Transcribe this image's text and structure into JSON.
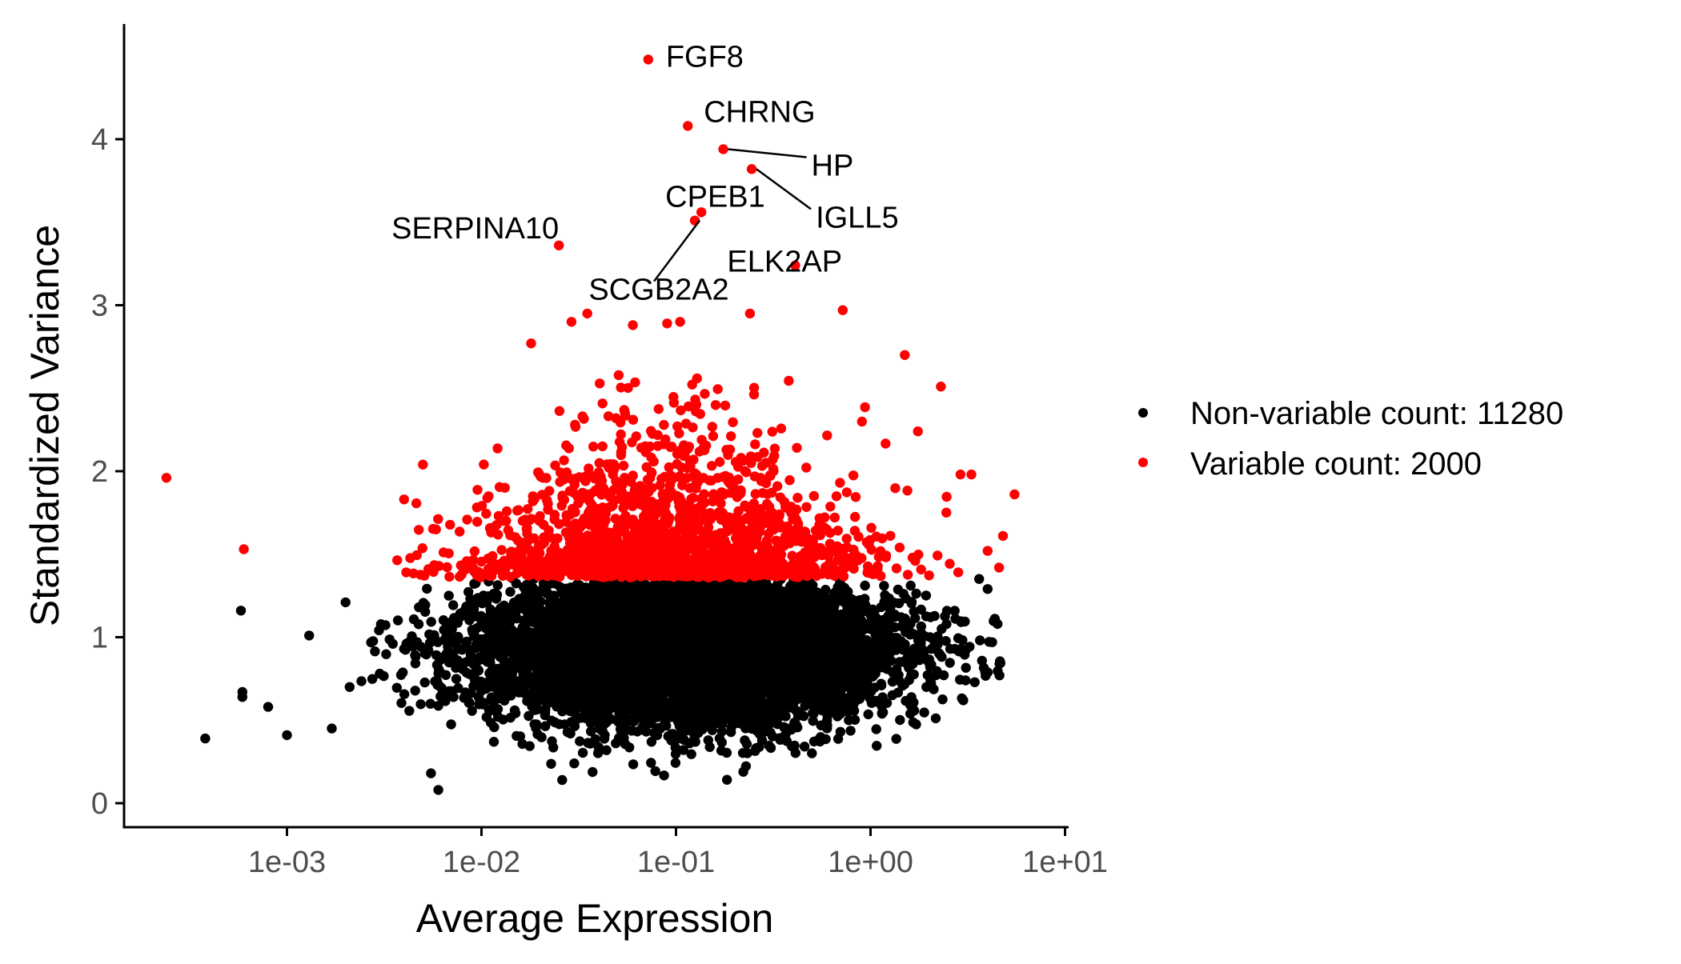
{
  "chart_data": {
    "type": "scatter",
    "title": "",
    "xlabel": "Average Expression",
    "ylabel": "Standardized Variance",
    "x_scale": "log10",
    "xlim": [
      0.0002,
      10
    ],
    "ylim": [
      0,
      4.6
    ],
    "x_ticks": [
      0.001,
      0.01,
      0.1,
      1,
      10
    ],
    "x_tick_labels": [
      "1e-03",
      "1e-02",
      "1e-01",
      "1e+00",
      "1e+01"
    ],
    "y_ticks": [
      0,
      1,
      2,
      3,
      4
    ],
    "y_tick_labels": [
      "0",
      "1",
      "2",
      "3",
      "4"
    ],
    "grid": false,
    "legend_position": "right",
    "series": [
      {
        "name": "Non-variable count: 11280",
        "color": "#000000",
        "count": 11280,
        "y_range": [
          0.08,
          1.36
        ],
        "sample_points": [
          [
            0.00038,
            0.39
          ],
          [
            0.00058,
            1.16
          ],
          [
            0.00059,
            0.67
          ],
          [
            0.00059,
            0.64
          ],
          [
            0.0008,
            0.58
          ],
          [
            0.0013,
            1.01
          ],
          [
            0.001,
            0.41
          ],
          [
            0.0017,
            0.45
          ],
          [
            0.002,
            1.21
          ],
          [
            0.0021,
            0.7
          ],
          [
            0.003,
            0.78
          ],
          [
            0.0035,
            0.96
          ],
          [
            0.0055,
            0.18
          ],
          [
            0.006,
            0.08
          ],
          [
            0.026,
            0.14
          ],
          [
            0.03,
            0.24
          ],
          [
            0.7,
            0.43
          ],
          [
            4.0,
            1.29
          ],
          [
            4.5,
            1.08
          ],
          [
            4.6,
            0.84
          ],
          [
            4.6,
            0.77
          ],
          [
            3.0,
            0.62
          ]
        ]
      },
      {
        "name": "Variable count: 2000",
        "color": "#ff0000",
        "count": 2000,
        "y_range": [
          1.36,
          4.5
        ],
        "sample_points": [
          [
            0.00024,
            1.96
          ],
          [
            0.0006,
            1.53
          ],
          [
            0.004,
            1.83
          ],
          [
            0.005,
            2.04
          ],
          [
            0.018,
            2.77
          ],
          [
            0.029,
            2.9
          ],
          [
            0.035,
            2.95
          ],
          [
            0.06,
            2.88
          ],
          [
            0.09,
            2.89
          ],
          [
            0.105,
            2.9
          ],
          [
            0.24,
            2.95
          ],
          [
            0.72,
            2.97
          ],
          [
            1.5,
            2.7
          ],
          [
            2.3,
            2.51
          ],
          [
            2.9,
            1.98
          ],
          [
            3.3,
            1.98
          ],
          [
            5.5,
            1.86
          ],
          [
            4.8,
            1.61
          ],
          [
            4.0,
            1.52
          ]
        ]
      }
    ],
    "labeled_points": [
      {
        "label": "FGF8",
        "x": 0.072,
        "y": 4.48
      },
      {
        "label": "CHRNG",
        "x": 0.115,
        "y": 4.08
      },
      {
        "label": "HP",
        "x": 0.175,
        "y": 3.94
      },
      {
        "label": "IGLL5",
        "x": 0.245,
        "y": 3.82
      },
      {
        "label": "CPEB1",
        "x": 0.135,
        "y": 3.56
      },
      {
        "label": "SCGB2A2",
        "x": 0.125,
        "y": 3.51
      },
      {
        "label": "SERPINA10",
        "x": 0.025,
        "y": 3.36
      },
      {
        "label": "ELK2AP",
        "x": 0.41,
        "y": 3.24
      }
    ]
  },
  "colors": {
    "non_variable": "#000000",
    "variable": "#ff0000"
  }
}
